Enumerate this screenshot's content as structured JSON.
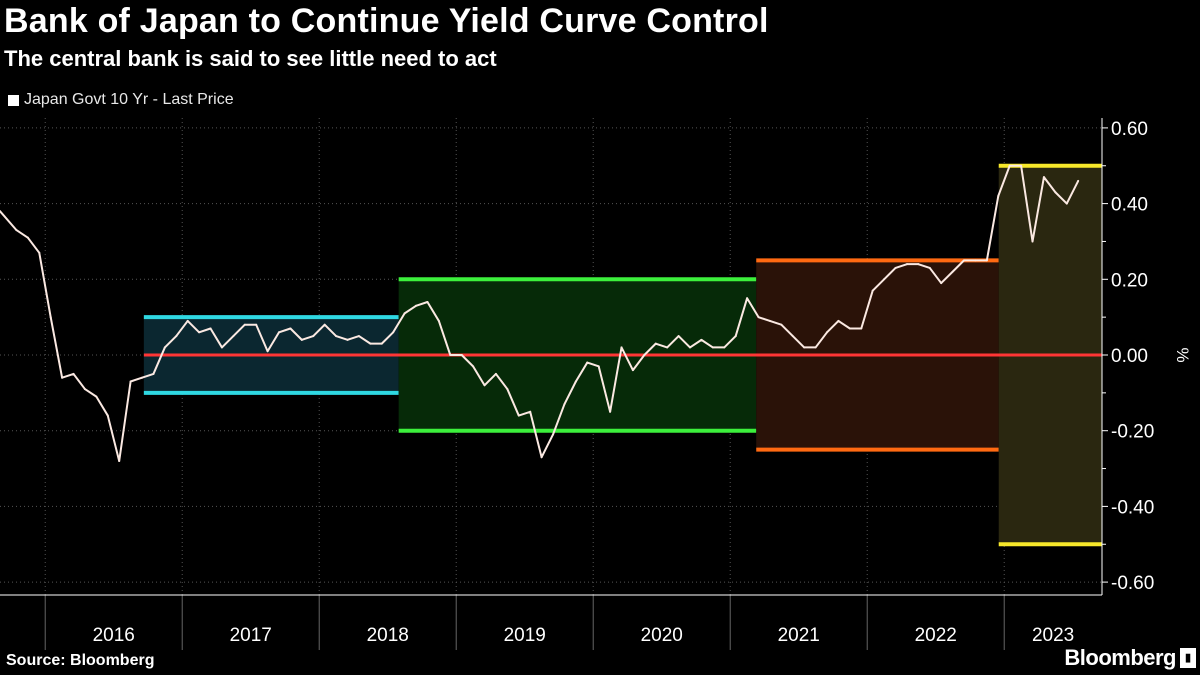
{
  "header": {
    "title": "Bank of Japan to Continue Yield Curve Control",
    "subtitle": "The central bank is said to see little need to act"
  },
  "footer": {
    "source": "Source: Bloomberg",
    "logo": "Bloomberg"
  },
  "colors": {
    "series": "#fbe9e2",
    "zero_line": "#ff3535",
    "background": "#000000"
  },
  "chart_data": {
    "type": "line",
    "title": "Bank of Japan to Continue Yield Curve Control",
    "subtitle": "The central bank is said to see little need to act",
    "legend": {
      "entries": [
        "Japan Govt 10 Yr - Last Price"
      ],
      "placement": "top-left"
    },
    "ylabel": "%",
    "ylim": [
      -0.62,
      0.62
    ],
    "yticks": [
      "0.60",
      "0.40",
      "0.20",
      "0.00",
      "-0.20",
      "-0.40",
      "-0.60"
    ],
    "ytick_values": [
      0.6,
      0.4,
      0.2,
      0.0,
      -0.2,
      -0.4,
      -0.6
    ],
    "xticks": [
      "2016",
      "2017",
      "2018",
      "2019",
      "2020",
      "2021",
      "2022",
      "2023"
    ],
    "xlim": [
      2015.67,
      2023.72
    ],
    "grid": true,
    "series": [
      {
        "name": "Japan Govt 10 Yr - Last Price",
        "x": [
          "2015-09",
          "2015-10",
          "2015-11",
          "2015-12",
          "2016-01",
          "2016-02",
          "2016-03",
          "2016-04",
          "2016-05",
          "2016-06",
          "2016-07",
          "2016-08",
          "2016-09",
          "2016-10",
          "2016-11",
          "2016-12",
          "2017-01",
          "2017-02",
          "2017-03",
          "2017-04",
          "2017-05",
          "2017-06",
          "2017-07",
          "2017-08",
          "2017-09",
          "2017-10",
          "2017-11",
          "2017-12",
          "2018-01",
          "2018-02",
          "2018-03",
          "2018-04",
          "2018-05",
          "2018-06",
          "2018-07",
          "2018-08",
          "2018-09",
          "2018-10",
          "2018-11",
          "2018-12",
          "2019-01",
          "2019-02",
          "2019-03",
          "2019-04",
          "2019-05",
          "2019-06",
          "2019-07",
          "2019-08",
          "2019-09",
          "2019-10",
          "2019-11",
          "2019-12",
          "2020-01",
          "2020-02",
          "2020-03",
          "2020-04",
          "2020-05",
          "2020-06",
          "2020-07",
          "2020-08",
          "2020-09",
          "2020-10",
          "2020-11",
          "2020-12",
          "2021-01",
          "2021-02",
          "2021-03",
          "2021-04",
          "2021-05",
          "2021-06",
          "2021-07",
          "2021-08",
          "2021-09",
          "2021-10",
          "2021-11",
          "2021-12",
          "2022-01",
          "2022-02",
          "2022-03",
          "2022-04",
          "2022-05",
          "2022-06",
          "2022-07",
          "2022-08",
          "2022-09",
          "2022-10",
          "2022-11",
          "2022-12",
          "2023-01",
          "2023-02",
          "2023-03",
          "2023-04",
          "2023-05",
          "2023-06",
          "2023-07"
        ],
        "values": [
          0.38,
          0.33,
          0.31,
          0.27,
          0.1,
          -0.06,
          -0.05,
          -0.09,
          -0.11,
          -0.16,
          -0.28,
          -0.07,
          -0.06,
          -0.05,
          0.02,
          0.05,
          0.09,
          0.06,
          0.07,
          0.02,
          0.05,
          0.08,
          0.08,
          0.01,
          0.06,
          0.07,
          0.04,
          0.05,
          0.08,
          0.05,
          0.04,
          0.05,
          0.03,
          0.03,
          0.06,
          0.11,
          0.13,
          0.14,
          0.09,
          0.0,
          0.0,
          -0.03,
          -0.08,
          -0.05,
          -0.09,
          -0.16,
          -0.15,
          -0.27,
          -0.21,
          -0.13,
          -0.07,
          -0.02,
          -0.03,
          -0.15,
          0.02,
          -0.04,
          0.0,
          0.03,
          0.02,
          0.05,
          0.02,
          0.04,
          0.02,
          0.02,
          0.05,
          0.15,
          0.1,
          0.09,
          0.08,
          0.05,
          0.02,
          0.02,
          0.06,
          0.09,
          0.07,
          0.07,
          0.17,
          0.2,
          0.23,
          0.24,
          0.24,
          0.23,
          0.19,
          0.22,
          0.25,
          0.25,
          0.25,
          0.42,
          0.5,
          0.5,
          0.3,
          0.47,
          0.43,
          0.4,
          0.46
        ]
      }
    ],
    "bands": [
      {
        "name": "ycc-band-0.10",
        "start": 2016.72,
        "end": 2018.58,
        "upper": 0.1,
        "lower": -0.1,
        "line_color": "#2fd8e2",
        "fill_color": "#0b2730"
      },
      {
        "name": "ycc-band-0.20",
        "start": 2018.58,
        "end": 2021.19,
        "upper": 0.2,
        "lower": -0.2,
        "line_color": "#3cf03c",
        "fill_color": "#062a08"
      },
      {
        "name": "ycc-band-0.25",
        "start": 2021.19,
        "end": 2022.96,
        "upper": 0.25,
        "lower": -0.25,
        "line_color": "#ff6a12",
        "fill_color": "#2a1208"
      },
      {
        "name": "ycc-band-0.50",
        "start": 2022.96,
        "end": 2023.72,
        "upper": 0.5,
        "lower": -0.5,
        "line_color": "#f7e82a",
        "fill_color": "#2a2710"
      }
    ],
    "zero_line": {
      "start": 2016.72,
      "end": 2023.72,
      "value": 0.0
    }
  }
}
